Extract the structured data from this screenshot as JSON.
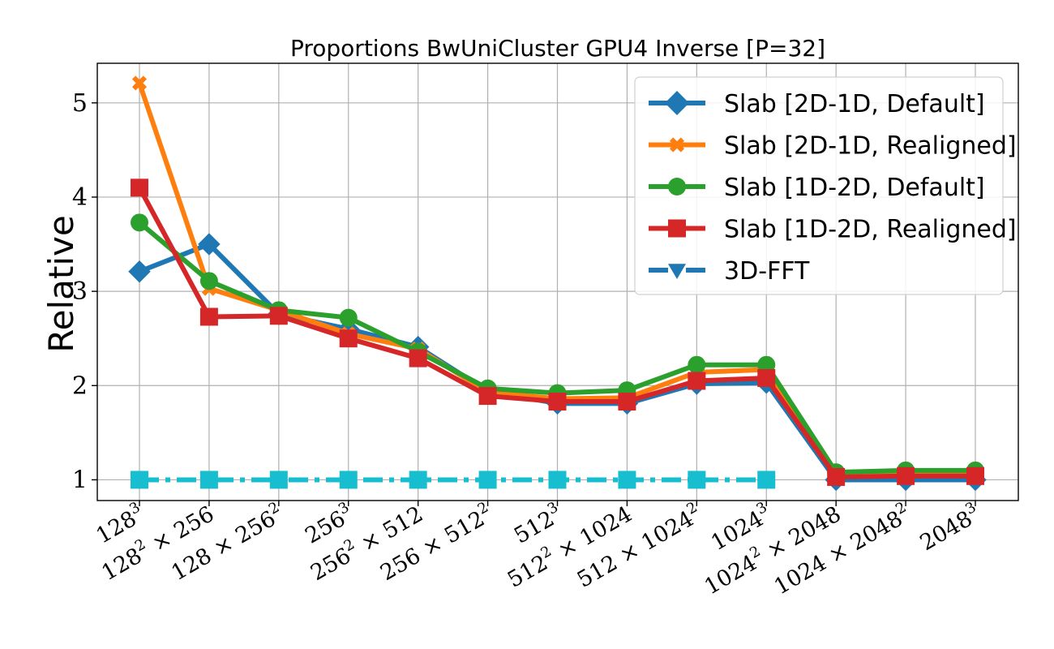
{
  "chart_data": {
    "type": "line",
    "title": "Proportions BwUniCluster GPU4 Inverse [P=32]",
    "xlabel": "",
    "ylabel": "Relative",
    "ylim": [
      0.78,
      5.42
    ],
    "yticks": [
      1,
      2,
      3,
      4,
      5
    ],
    "grid": true,
    "legend_position": "top-right",
    "categories": [
      {
        "base": "128",
        "sup": "3",
        "rest": ""
      },
      {
        "base": "128",
        "sup": "2",
        "rest": " × 256"
      },
      {
        "base": "128 × 256",
        "sup": "2",
        "rest": ""
      },
      {
        "base": "256",
        "sup": "3",
        "rest": ""
      },
      {
        "base": "256",
        "sup": "2",
        "rest": " × 512"
      },
      {
        "base": "256 × 512",
        "sup": "2",
        "rest": ""
      },
      {
        "base": "512",
        "sup": "3",
        "rest": ""
      },
      {
        "base": "512",
        "sup": "2",
        "rest": " × 1024"
      },
      {
        "base": "512 × 1024",
        "sup": "2",
        "rest": ""
      },
      {
        "base": "1024",
        "sup": "3",
        "rest": ""
      },
      {
        "base": "1024",
        "sup": "2",
        "rest": " × 2048"
      },
      {
        "base": "1024 × 2048",
        "sup": "2",
        "rest": ""
      },
      {
        "base": "2048",
        "sup": "3",
        "rest": ""
      }
    ],
    "series": [
      {
        "name": "Slab [2D-1D, Default]",
        "color": "#1f77b4",
        "marker": "diamond",
        "linestyle": "solid",
        "values": [
          3.21,
          3.5,
          2.76,
          2.6,
          2.41,
          1.94,
          1.81,
          1.81,
          2.02,
          2.03,
          1.0,
          1.0,
          1.0
        ]
      },
      {
        "name": "Slab [2D-1D, Realigned]",
        "color": "#ff7f0e",
        "marker": "x",
        "linestyle": "solid",
        "values": [
          5.21,
          3.03,
          2.8,
          2.55,
          2.39,
          1.93,
          1.86,
          1.87,
          2.14,
          2.17,
          1.05,
          1.07,
          1.07
        ]
      },
      {
        "name": "Slab [1D-2D, Default]",
        "color": "#2ca02c",
        "marker": "circle",
        "linestyle": "solid",
        "values": [
          3.73,
          3.11,
          2.8,
          2.72,
          2.36,
          1.97,
          1.92,
          1.95,
          2.22,
          2.22,
          1.08,
          1.1,
          1.1
        ]
      },
      {
        "name": "Slab [1D-2D, Realigned]",
        "color": "#d62728",
        "marker": "square",
        "linestyle": "solid",
        "values": [
          4.1,
          2.73,
          2.74,
          2.5,
          2.29,
          1.89,
          1.83,
          1.83,
          2.05,
          2.08,
          1.03,
          1.04,
          1.04
        ]
      },
      {
        "name": "3D-FFT",
        "color": "#17becf",
        "legend_color": "#1f77b4",
        "marker": "square",
        "legend_marker": "triangle-down",
        "linestyle": "dashdot",
        "values": [
          1.0,
          1.0,
          1.0,
          1.0,
          1.0,
          1.0,
          1.0,
          1.0,
          1.0,
          1.0,
          null,
          null,
          null
        ]
      }
    ]
  }
}
